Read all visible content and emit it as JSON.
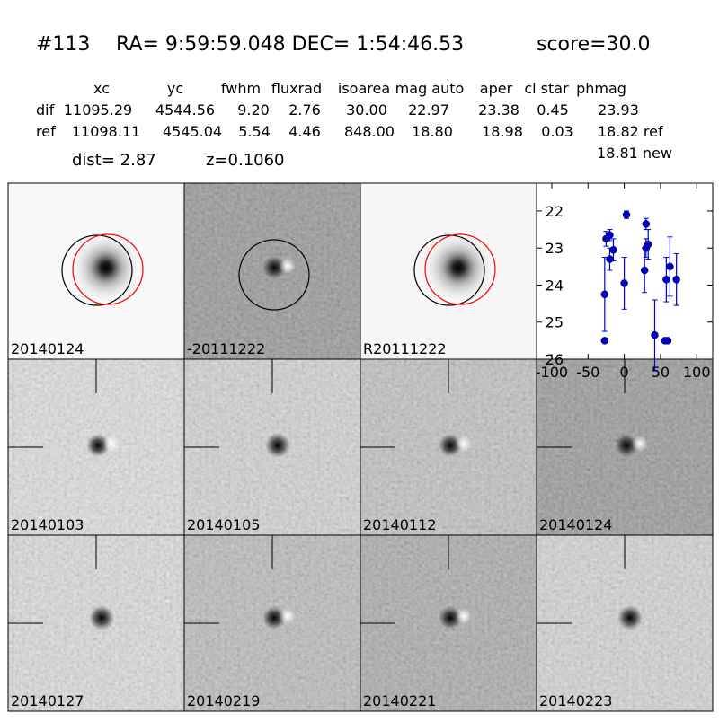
{
  "header": {
    "id": "#113",
    "coords": "RA= 9:59:59.048 DEC= 1:54:46.53",
    "score": "score=30.0",
    "dist": "dist=  2.87",
    "z": "z=0.1060",
    "new_mag": "18.81 new"
  },
  "table": {
    "columns": [
      "xc",
      "yc",
      "fwhm",
      "fluxrad",
      "isoarea",
      "mag auto",
      "aper",
      "cl star",
      "phmag"
    ],
    "rows": [
      [
        "dif",
        "11095.29",
        "4544.56",
        "9.20",
        "2.76",
        "30.00",
        "22.97",
        "23.38",
        "0.45",
        "23.93"
      ],
      [
        "ref",
        "11098.11",
        "4545.04",
        "5.54",
        "4.46",
        "848.00",
        "18.80",
        "18.98",
        "0.03",
        "18.82 ref"
      ]
    ]
  },
  "stamps": [
    {
      "label": "20140124"
    },
    {
      "label": "-20111222"
    },
    {
      "label": "R20111222"
    },
    {
      "label": "20140103"
    },
    {
      "label": "20140105"
    },
    {
      "label": "20140112"
    },
    {
      "label": "20140124",
      "color": "#ff0000"
    },
    {
      "label": "20140127"
    },
    {
      "label": "20140219"
    },
    {
      "label": "20140221"
    },
    {
      "label": "20140223"
    }
  ],
  "chart_data": {
    "type": "scatter",
    "x": [
      -27,
      -27,
      -25,
      -20,
      -20,
      -15,
      0,
      3,
      28,
      30,
      30,
      33,
      42,
      56,
      58,
      60,
      63,
      72
    ],
    "values": [
      25.5,
      24.25,
      22.75,
      22.65,
      23.3,
      23.05,
      23.95,
      22.1,
      23.6,
      22.35,
      23.0,
      22.9,
      25.35,
      25.5,
      23.85,
      25.5,
      23.5,
      23.85
    ],
    "errors": [
      0.05,
      1.0,
      0.2,
      0.15,
      0.3,
      0.3,
      0.7,
      0.1,
      0.6,
      0.15,
      0.25,
      0.4,
      0.95,
      0.05,
      0.6,
      0.05,
      0.8,
      0.7
    ],
    "color": "#0000cc",
    "xlim": [
      -121,
      122
    ],
    "ylim": [
      26,
      21.25
    ],
    "xticks": [
      -100,
      -50,
      0,
      50,
      100
    ],
    "yticks": [
      22,
      23,
      24,
      25,
      26
    ]
  }
}
